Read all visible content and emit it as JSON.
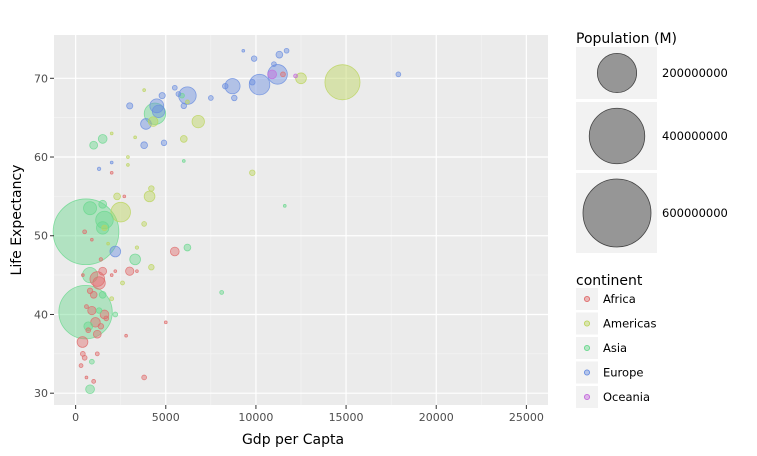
{
  "chart_data": {
    "type": "scatter",
    "xlabel": "Gdp per Capta",
    "ylabel": "Life Expectancy",
    "xlim": [
      -1200,
      26200
    ],
    "ylim": [
      28.5,
      75.5
    ],
    "x_ticks": [
      0,
      5000,
      10000,
      15000,
      20000,
      25000
    ],
    "x_tick_labels": [
      "0",
      "5000",
      "10000",
      "15000",
      "20000",
      "25000"
    ],
    "y_ticks": [
      30,
      40,
      50,
      60,
      70
    ],
    "y_tick_labels": [
      "30",
      "40",
      "50",
      "60",
      "70"
    ],
    "grid": true,
    "size_legend": {
      "title": "Population (M)",
      "entries": [
        {
          "label": "200000000",
          "value": 200000000
        },
        {
          "label": "400000000",
          "value": 400000000
        },
        {
          "label": "600000000",
          "value": 600000000
        }
      ]
    },
    "color_legend": {
      "title": "continent",
      "entries": [
        {
          "label": "Africa",
          "color": "#e06c6c"
        },
        {
          "label": "Americas",
          "color": "#bcd45e"
        },
        {
          "label": "Asia",
          "color": "#6ad88e"
        },
        {
          "label": "Europe",
          "color": "#6b8fe0"
        },
        {
          "label": "Oceania",
          "color": "#c46bdc"
        }
      ]
    },
    "series": [
      {
        "name": "Africa",
        "color": "#e06c6c",
        "points": [
          {
            "x": 1200,
            "y": 44.5,
            "pop": 28000000
          },
          {
            "x": 1300,
            "y": 44.0,
            "pop": 20000000
          },
          {
            "x": 1500,
            "y": 45.5,
            "pop": 8000000
          },
          {
            "x": 1000,
            "y": 42.5,
            "pop": 6000000
          },
          {
            "x": 900,
            "y": 40.5,
            "pop": 9000000
          },
          {
            "x": 1100,
            "y": 39.0,
            "pop": 12000000
          },
          {
            "x": 1200,
            "y": 37.5,
            "pop": 8000000
          },
          {
            "x": 1400,
            "y": 38.5,
            "pop": 4000000
          },
          {
            "x": 700,
            "y": 38.0,
            "pop": 3000000
          },
          {
            "x": 600,
            "y": 41.0,
            "pop": 2000000
          },
          {
            "x": 800,
            "y": 43.0,
            "pop": 4000000
          },
          {
            "x": 1600,
            "y": 40.0,
            "pop": 10000000
          },
          {
            "x": 1700,
            "y": 39.5,
            "pop": 3000000
          },
          {
            "x": 1400,
            "y": 47.0,
            "pop": 1500000
          },
          {
            "x": 2000,
            "y": 45.0,
            "pop": 1000000
          },
          {
            "x": 2200,
            "y": 45.5,
            "pop": 1000000
          },
          {
            "x": 3000,
            "y": 45.5,
            "pop": 9000000
          },
          {
            "x": 3400,
            "y": 45.5,
            "pop": 1000000
          },
          {
            "x": 380,
            "y": 36.5,
            "pop": 15000000
          },
          {
            "x": 400,
            "y": 35.0,
            "pop": 3000000
          },
          {
            "x": 500,
            "y": 34.5,
            "pop": 3000000
          },
          {
            "x": 300,
            "y": 33.5,
            "pop": 2000000
          },
          {
            "x": 1000,
            "y": 31.5,
            "pop": 2000000
          },
          {
            "x": 1200,
            "y": 35.0,
            "pop": 2000000
          },
          {
            "x": 600,
            "y": 32.0,
            "pop": 600000
          },
          {
            "x": 3800,
            "y": 32.0,
            "pop": 3000000
          },
          {
            "x": 2800,
            "y": 37.3,
            "pop": 300000
          },
          {
            "x": 5000,
            "y": 39.0,
            "pop": 500000
          },
          {
            "x": 5500,
            "y": 48.0,
            "pop": 10000000
          },
          {
            "x": 400,
            "y": 45.0,
            "pop": 1000000
          },
          {
            "x": 900,
            "y": 49.5,
            "pop": 1000000
          },
          {
            "x": 500,
            "y": 50.5,
            "pop": 2000000
          },
          {
            "x": 2700,
            "y": 55.0,
            "pop": 400000
          },
          {
            "x": 2000,
            "y": 58.0,
            "pop": 500000
          },
          {
            "x": 11500,
            "y": 70.5,
            "pop": 3000000
          }
        ]
      },
      {
        "name": "Americas",
        "color": "#bcd45e",
        "points": [
          {
            "x": 14800,
            "y": 69.5,
            "pop": 160000000
          },
          {
            "x": 12500,
            "y": 70.0,
            "pop": 15000000
          },
          {
            "x": 6800,
            "y": 64.5,
            "pop": 20000000
          },
          {
            "x": 6000,
            "y": 62.3,
            "pop": 6000000
          },
          {
            "x": 4300,
            "y": 64.5,
            "pop": 12000000
          },
          {
            "x": 3300,
            "y": 62.5,
            "pop": 1000000
          },
          {
            "x": 2000,
            "y": 63.0,
            "pop": 1000000
          },
          {
            "x": 2900,
            "y": 60.0,
            "pop": 500000
          },
          {
            "x": 2900,
            "y": 59.0,
            "pop": 600000
          },
          {
            "x": 9800,
            "y": 58.0,
            "pop": 4000000
          },
          {
            "x": 4200,
            "y": 56.0,
            "pop": 4000000
          },
          {
            "x": 4100,
            "y": 55.0,
            "pop": 15000000
          },
          {
            "x": 2300,
            "y": 55.0,
            "pop": 6000000
          },
          {
            "x": 2500,
            "y": 53.0,
            "pop": 50000000
          },
          {
            "x": 3800,
            "y": 51.5,
            "pop": 3000000
          },
          {
            "x": 3400,
            "y": 48.5,
            "pop": 1500000
          },
          {
            "x": 4200,
            "y": 46.0,
            "pop": 4000000
          },
          {
            "x": 2600,
            "y": 44.0,
            "pop": 2000000
          },
          {
            "x": 2000,
            "y": 42.0,
            "pop": 2000000
          },
          {
            "x": 1800,
            "y": 49.0,
            "pop": 1000000
          },
          {
            "x": 3800,
            "y": 68.5,
            "pop": 1000000
          },
          {
            "x": 6200,
            "y": 67.0,
            "pop": 2000000
          },
          {
            "x": 1600,
            "y": 51.0,
            "pop": 4000000
          }
        ]
      },
      {
        "name": "Asia",
        "color": "#6ad88e",
        "points": [
          {
            "x": 575,
            "y": 50.5,
            "pop": 560000000
          },
          {
            "x": 550,
            "y": 40.3,
            "pop": 370000000
          },
          {
            "x": 800,
            "y": 45.0,
            "pop": 30000000
          },
          {
            "x": 1600,
            "y": 52.0,
            "pop": 40000000
          },
          {
            "x": 1500,
            "y": 51.0,
            "pop": 20000000
          },
          {
            "x": 800,
            "y": 53.5,
            "pop": 22000000
          },
          {
            "x": 1500,
            "y": 54.0,
            "pop": 8000000
          },
          {
            "x": 1000,
            "y": 61.5,
            "pop": 8000000
          },
          {
            "x": 1500,
            "y": 62.3,
            "pop": 10000000
          },
          {
            "x": 4400,
            "y": 65.5,
            "pop": 60000000
          },
          {
            "x": 3300,
            "y": 47.0,
            "pop": 15000000
          },
          {
            "x": 6200,
            "y": 48.5,
            "pop": 6000000
          },
          {
            "x": 8100,
            "y": 42.8,
            "pop": 2000000
          },
          {
            "x": 6000,
            "y": 59.5,
            "pop": 1000000
          },
          {
            "x": 11600,
            "y": 53.8,
            "pop": 500000
          },
          {
            "x": 700,
            "y": 38.5,
            "pop": 10000000
          },
          {
            "x": 1500,
            "y": 42.5,
            "pop": 6000000
          },
          {
            "x": 900,
            "y": 34.0,
            "pop": 3000000
          },
          {
            "x": 800,
            "y": 30.5,
            "pop": 10000000
          },
          {
            "x": 1300,
            "y": 40.5,
            "pop": 4000000
          },
          {
            "x": 5900,
            "y": 67.8,
            "pop": 3000000
          },
          {
            "x": 2200,
            "y": 40.0,
            "pop": 3000000
          }
        ]
      },
      {
        "name": "Europe",
        "color": "#6b8fe0",
        "points": [
          {
            "x": 10200,
            "y": 69.2,
            "pop": 55000000
          },
          {
            "x": 11200,
            "y": 70.5,
            "pop": 50000000
          },
          {
            "x": 8700,
            "y": 69.0,
            "pop": 30000000
          },
          {
            "x": 6200,
            "y": 67.8,
            "pop": 40000000
          },
          {
            "x": 4500,
            "y": 66.5,
            "pop": 25000000
          },
          {
            "x": 4600,
            "y": 65.8,
            "pop": 20000000
          },
          {
            "x": 3900,
            "y": 64.2,
            "pop": 15000000
          },
          {
            "x": 3000,
            "y": 66.5,
            "pop": 5000000
          },
          {
            "x": 4800,
            "y": 67.8,
            "pop": 5000000
          },
          {
            "x": 5700,
            "y": 68.0,
            "pop": 3000000
          },
          {
            "x": 5500,
            "y": 68.8,
            "pop": 3000000
          },
          {
            "x": 6000,
            "y": 66.5,
            "pop": 4000000
          },
          {
            "x": 7500,
            "y": 67.5,
            "pop": 3000000
          },
          {
            "x": 8300,
            "y": 69.0,
            "pop": 4000000
          },
          {
            "x": 8800,
            "y": 67.5,
            "pop": 4000000
          },
          {
            "x": 9800,
            "y": 69.5,
            "pop": 4000000
          },
          {
            "x": 9900,
            "y": 72.5,
            "pop": 4000000
          },
          {
            "x": 11300,
            "y": 73.0,
            "pop": 6000000
          },
          {
            "x": 11700,
            "y": 73.5,
            "pop": 3000000
          },
          {
            "x": 11000,
            "y": 71.8,
            "pop": 3000000
          },
          {
            "x": 9300,
            "y": 73.5,
            "pop": 200000
          },
          {
            "x": 17900,
            "y": 70.5,
            "pop": 3000000
          },
          {
            "x": 3800,
            "y": 61.5,
            "pop": 6000000
          },
          {
            "x": 4900,
            "y": 61.8,
            "pop": 4000000
          },
          {
            "x": 2200,
            "y": 48.0,
            "pop": 15000000
          },
          {
            "x": 2000,
            "y": 59.3,
            "pop": 1000000
          },
          {
            "x": 1300,
            "y": 58.5,
            "pop": 1500000
          }
        ]
      },
      {
        "name": "Oceania",
        "color": "#c46bdc",
        "points": [
          {
            "x": 10900,
            "y": 70.5,
            "pop": 10000000
          },
          {
            "x": 12200,
            "y": 70.3,
            "pop": 2000000
          }
        ]
      }
    ]
  }
}
